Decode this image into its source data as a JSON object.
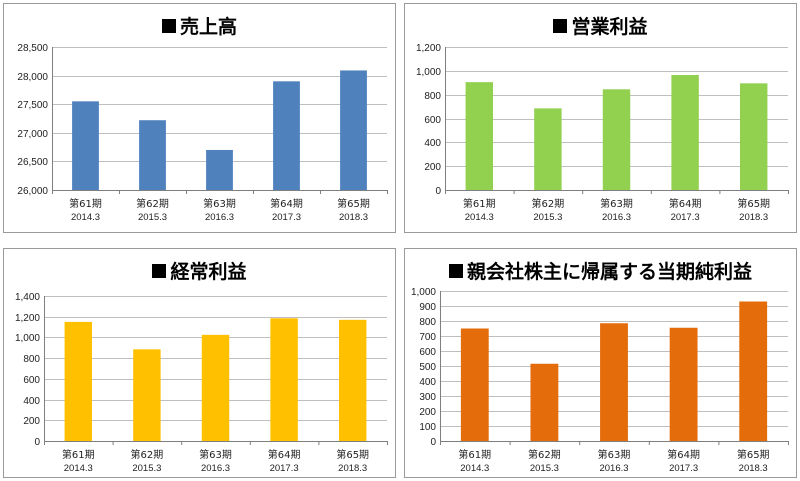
{
  "chart_data": [
    {
      "type": "bar",
      "title": "売上高",
      "categories": [
        "第61期",
        "第62期",
        "第63期",
        "第64期",
        "第65期"
      ],
      "categories_sub": [
        "2014.3",
        "2015.3",
        "2016.3",
        "2017.3",
        "2018.3"
      ],
      "values": [
        27550,
        27220,
        26700,
        27900,
        28090
      ],
      "ylim": [
        26000,
        28500
      ],
      "yticks": [
        26000,
        26500,
        27000,
        27500,
        28000,
        28500
      ],
      "color": "#4f81bd",
      "grid": true
    },
    {
      "type": "bar",
      "title": "営業利益",
      "categories": [
        "第61期",
        "第62期",
        "第63期",
        "第64期",
        "第65期"
      ],
      "categories_sub": [
        "2014.3",
        "2015.3",
        "2016.3",
        "2017.3",
        "2018.3"
      ],
      "values": [
        905,
        685,
        845,
        965,
        895
      ],
      "ylim": [
        0,
        1200
      ],
      "yticks": [
        0,
        200,
        400,
        600,
        800,
        1000,
        1200
      ],
      "color": "#92d050",
      "grid": true
    },
    {
      "type": "bar",
      "title": "経常利益",
      "categories": [
        "第61期",
        "第62期",
        "第63期",
        "第64期",
        "第65期"
      ],
      "categories_sub": [
        "2014.3",
        "2015.3",
        "2016.3",
        "2017.3",
        "2018.3"
      ],
      "values": [
        1150,
        885,
        1025,
        1185,
        1170
      ],
      "ylim": [
        0,
        1400
      ],
      "yticks": [
        0,
        200,
        400,
        600,
        800,
        1000,
        1200,
        1400
      ],
      "color": "#ffc000",
      "grid": true
    },
    {
      "type": "bar",
      "title": "親会社株主に帰属する当期純利益",
      "categories": [
        "第61期",
        "第62期",
        "第63期",
        "第64期",
        "第65期"
      ],
      "categories_sub": [
        "2014.3",
        "2015.3",
        "2016.3",
        "2017.3",
        "2018.3"
      ],
      "values": [
        750,
        515,
        785,
        755,
        930
      ],
      "ylim": [
        0,
        1000
      ],
      "yticks": [
        0,
        100,
        200,
        300,
        400,
        500,
        600,
        700,
        800,
        900,
        1000
      ],
      "color": "#e46c0a",
      "grid": true
    }
  ]
}
